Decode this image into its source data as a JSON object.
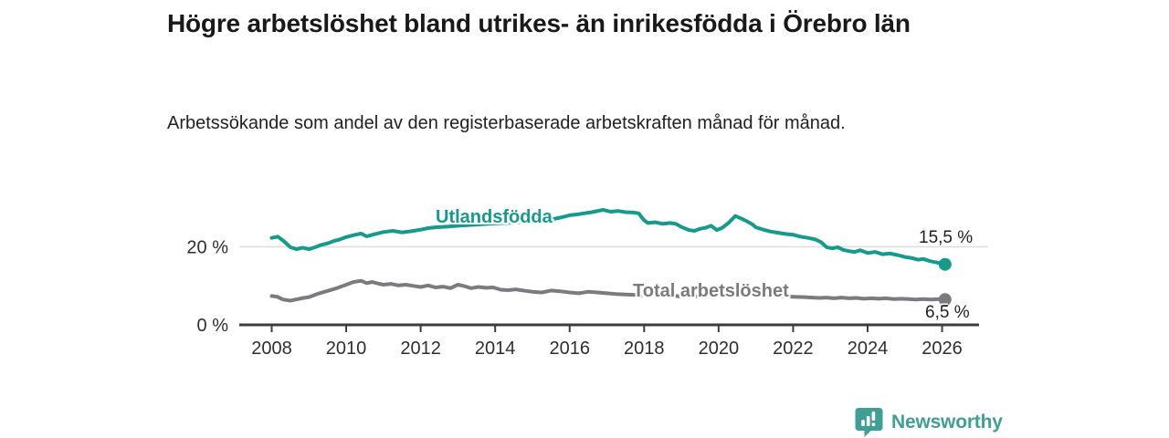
{
  "header": {
    "title": "Högre arbetslöshet bland utrikes- än inrikesfödda i Örebro län",
    "subtitle": "Arbetssökande som andel av den registerbaserade arbetskraften månad för månad."
  },
  "chart_data": {
    "type": "line",
    "title": "Högre arbetslöshet bland utrikes- än inrikesfödda i Örebro län",
    "subtitle": "Arbetssökande som andel av den registerbaserade arbetskraften månad för månad.",
    "xlabel": "",
    "ylabel": "",
    "xlim": [
      2007.1,
      2027.0
    ],
    "ylim": [
      0,
      31
    ],
    "x_ticks": [
      2008,
      2010,
      2012,
      2014,
      2016,
      2018,
      2020,
      2022,
      2024,
      2026
    ],
    "y_tick_labels": [
      {
        "value": 20,
        "label": "20 %",
        "gridline": true
      },
      {
        "value": 0,
        "label": "0 %",
        "gridline": false
      }
    ],
    "legend_position": "inline",
    "series": [
      {
        "name": "Utlandsfödda",
        "color": "#169a8c",
        "end_label": "15,5 %",
        "end_value": 15.5,
        "points": [
          [
            2008.0,
            22.3
          ],
          [
            2008.17,
            22.6
          ],
          [
            2008.33,
            21.4
          ],
          [
            2008.5,
            19.9
          ],
          [
            2008.67,
            19.4
          ],
          [
            2008.83,
            19.8
          ],
          [
            2009.0,
            19.4
          ],
          [
            2009.17,
            19.9
          ],
          [
            2009.33,
            20.5
          ],
          [
            2009.5,
            20.9
          ],
          [
            2009.67,
            21.5
          ],
          [
            2009.83,
            21.9
          ],
          [
            2010.0,
            22.5
          ],
          [
            2010.2,
            23.0
          ],
          [
            2010.4,
            23.4
          ],
          [
            2010.55,
            22.7
          ],
          [
            2010.75,
            23.2
          ],
          [
            2011.0,
            23.8
          ],
          [
            2011.25,
            24.1
          ],
          [
            2011.5,
            23.7
          ],
          [
            2011.75,
            24.0
          ],
          [
            2012.0,
            24.4
          ],
          [
            2012.2,
            24.8
          ],
          [
            2012.4,
            25.0
          ],
          [
            2012.75,
            25.2
          ],
          [
            2013.0,
            25.4
          ],
          [
            2013.5,
            25.7
          ],
          [
            2014.0,
            26.0
          ],
          [
            2014.5,
            26.2
          ],
          [
            2015.0,
            26.6
          ],
          [
            2015.5,
            27.0
          ],
          [
            2015.8,
            27.6
          ],
          [
            2016.0,
            28.1
          ],
          [
            2016.2,
            28.3
          ],
          [
            2016.4,
            28.6
          ],
          [
            2016.6,
            28.9
          ],
          [
            2016.9,
            29.5
          ],
          [
            2017.1,
            29.0
          ],
          [
            2017.3,
            29.2
          ],
          [
            2017.5,
            28.9
          ],
          [
            2017.7,
            28.8
          ],
          [
            2017.85,
            28.6
          ],
          [
            2018.0,
            26.8
          ],
          [
            2018.1,
            26.1
          ],
          [
            2018.3,
            26.3
          ],
          [
            2018.5,
            25.9
          ],
          [
            2018.7,
            26.1
          ],
          [
            2018.85,
            25.9
          ],
          [
            2019.0,
            25.1
          ],
          [
            2019.2,
            24.3
          ],
          [
            2019.35,
            24.1
          ],
          [
            2019.5,
            24.6
          ],
          [
            2019.65,
            24.9
          ],
          [
            2019.8,
            25.4
          ],
          [
            2019.95,
            24.3
          ],
          [
            2020.1,
            24.9
          ],
          [
            2020.25,
            26.0
          ],
          [
            2020.45,
            27.9
          ],
          [
            2020.6,
            27.3
          ],
          [
            2020.75,
            26.6
          ],
          [
            2020.9,
            25.8
          ],
          [
            2021.0,
            25.0
          ],
          [
            2021.2,
            24.4
          ],
          [
            2021.4,
            23.9
          ],
          [
            2021.6,
            23.6
          ],
          [
            2021.8,
            23.3
          ],
          [
            2022.0,
            23.1
          ],
          [
            2022.2,
            22.6
          ],
          [
            2022.4,
            22.3
          ],
          [
            2022.6,
            21.9
          ],
          [
            2022.75,
            21.2
          ],
          [
            2022.9,
            19.9
          ],
          [
            2023.05,
            19.6
          ],
          [
            2023.2,
            19.9
          ],
          [
            2023.35,
            19.2
          ],
          [
            2023.5,
            18.9
          ],
          [
            2023.65,
            18.7
          ],
          [
            2023.8,
            19.1
          ],
          [
            2024.0,
            18.4
          ],
          [
            2024.2,
            18.7
          ],
          [
            2024.4,
            18.1
          ],
          [
            2024.6,
            18.3
          ],
          [
            2024.8,
            17.9
          ],
          [
            2025.0,
            17.4
          ],
          [
            2025.2,
            17.1
          ],
          [
            2025.35,
            16.7
          ],
          [
            2025.5,
            16.9
          ],
          [
            2025.65,
            16.4
          ],
          [
            2025.8,
            16.1
          ],
          [
            2026.0,
            15.7
          ],
          [
            2026.08,
            15.5
          ]
        ]
      },
      {
        "name": "Total arbetslöshet",
        "color": "#7b7a7f",
        "end_label": "6,5 %",
        "end_value": 6.5,
        "points": [
          [
            2008.0,
            7.4
          ],
          [
            2008.15,
            7.2
          ],
          [
            2008.3,
            6.5
          ],
          [
            2008.5,
            6.2
          ],
          [
            2008.7,
            6.6
          ],
          [
            2008.85,
            6.9
          ],
          [
            2009.0,
            7.1
          ],
          [
            2009.25,
            8.0
          ],
          [
            2009.5,
            8.7
          ],
          [
            2009.75,
            9.4
          ],
          [
            2010.0,
            10.3
          ],
          [
            2010.2,
            11.0
          ],
          [
            2010.4,
            11.3
          ],
          [
            2010.55,
            10.7
          ],
          [
            2010.7,
            11.0
          ],
          [
            2010.85,
            10.6
          ],
          [
            2011.0,
            10.3
          ],
          [
            2011.2,
            10.5
          ],
          [
            2011.4,
            10.1
          ],
          [
            2011.6,
            10.3
          ],
          [
            2011.8,
            10.0
          ],
          [
            2012.0,
            9.7
          ],
          [
            2012.2,
            10.1
          ],
          [
            2012.4,
            9.6
          ],
          [
            2012.6,
            9.8
          ],
          [
            2012.8,
            9.4
          ],
          [
            2013.0,
            10.3
          ],
          [
            2013.15,
            10.0
          ],
          [
            2013.35,
            9.4
          ],
          [
            2013.55,
            9.7
          ],
          [
            2013.75,
            9.5
          ],
          [
            2013.95,
            9.6
          ],
          [
            2014.15,
            9.0
          ],
          [
            2014.35,
            8.9
          ],
          [
            2014.55,
            9.1
          ],
          [
            2014.75,
            8.8
          ],
          [
            2015.0,
            8.5
          ],
          [
            2015.25,
            8.3
          ],
          [
            2015.5,
            8.8
          ],
          [
            2015.75,
            8.6
          ],
          [
            2016.0,
            8.3
          ],
          [
            2016.25,
            8.1
          ],
          [
            2016.5,
            8.5
          ],
          [
            2016.75,
            8.3
          ],
          [
            2017.0,
            8.1
          ],
          [
            2017.25,
            7.9
          ],
          [
            2017.5,
            7.8
          ],
          [
            2017.75,
            7.7
          ],
          [
            2018.0,
            7.6
          ],
          [
            2018.5,
            7.5
          ],
          [
            2019.0,
            7.3
          ],
          [
            2019.5,
            7.3
          ],
          [
            2020.0,
            7.9
          ],
          [
            2020.4,
            8.7
          ],
          [
            2020.8,
            8.4
          ],
          [
            2021.2,
            7.9
          ],
          [
            2021.6,
            7.4
          ],
          [
            2022.0,
            7.2
          ],
          [
            2022.3,
            7.1
          ],
          [
            2022.5,
            7.0
          ],
          [
            2022.7,
            6.9
          ],
          [
            2022.9,
            7.0
          ],
          [
            2023.1,
            6.8
          ],
          [
            2023.3,
            7.0
          ],
          [
            2023.5,
            6.8
          ],
          [
            2023.7,
            6.9
          ],
          [
            2023.9,
            6.7
          ],
          [
            2024.1,
            6.8
          ],
          [
            2024.3,
            6.7
          ],
          [
            2024.5,
            6.8
          ],
          [
            2024.7,
            6.6
          ],
          [
            2024.9,
            6.7
          ],
          [
            2025.1,
            6.6
          ],
          [
            2025.3,
            6.5
          ],
          [
            2025.5,
            6.6
          ],
          [
            2025.7,
            6.5
          ],
          [
            2025.9,
            6.6
          ],
          [
            2026.08,
            6.5
          ]
        ]
      }
    ]
  },
  "colors": {
    "accent_teal": "#169a8c",
    "series_gray": "#7b7a7f",
    "axis": "#3c3c3c",
    "gridline": "#dcdcdc",
    "logo_teal": "#3f9f94"
  },
  "branding": {
    "logo_text": "Newsworthy",
    "logo_icon": "bar-chart-speech-bubble-icon"
  }
}
